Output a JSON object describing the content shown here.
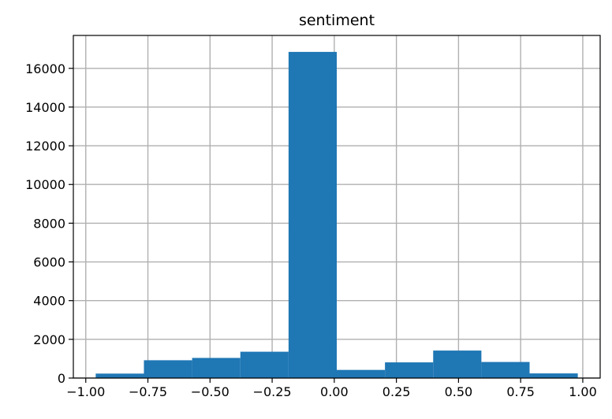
{
  "chart_data": {
    "type": "bar",
    "title": "sentiment",
    "xlabel": "",
    "ylabel": "",
    "bins": [
      {
        "start": -0.96,
        "end": -0.766,
        "count": 230
      },
      {
        "start": -0.766,
        "end": -0.572,
        "count": 920
      },
      {
        "start": -0.572,
        "end": -0.378,
        "count": 1040
      },
      {
        "start": -0.378,
        "end": -0.184,
        "count": 1360
      },
      {
        "start": -0.184,
        "end": 0.01,
        "count": 16850
      },
      {
        "start": 0.01,
        "end": 0.204,
        "count": 420
      },
      {
        "start": 0.204,
        "end": 0.398,
        "count": 810
      },
      {
        "start": 0.398,
        "end": 0.592,
        "count": 1420
      },
      {
        "start": 0.592,
        "end": 0.786,
        "count": 830
      },
      {
        "start": 0.786,
        "end": 0.98,
        "count": 240
      }
    ],
    "xlim": [
      -1.05,
      1.07
    ],
    "ylim": [
      0,
      17700
    ],
    "xticks": [
      -1.0,
      -0.75,
      -0.5,
      -0.25,
      0.0,
      0.25,
      0.5,
      0.75,
      1.0
    ],
    "xtick_labels": [
      "−1.00",
      "−0.75",
      "−0.50",
      "−0.25",
      "0.00",
      "0.25",
      "0.50",
      "0.75",
      "1.00"
    ],
    "yticks": [
      0,
      2000,
      4000,
      6000,
      8000,
      10000,
      12000,
      14000,
      16000
    ],
    "ytick_labels": [
      "0",
      "2000",
      "4000",
      "6000",
      "8000",
      "10000",
      "12000",
      "14000",
      "16000"
    ],
    "grid": true,
    "legend": "none",
    "colors": {
      "bar": "#1f77b4",
      "grid": "#b0b0b0",
      "axes": "#000000"
    }
  }
}
